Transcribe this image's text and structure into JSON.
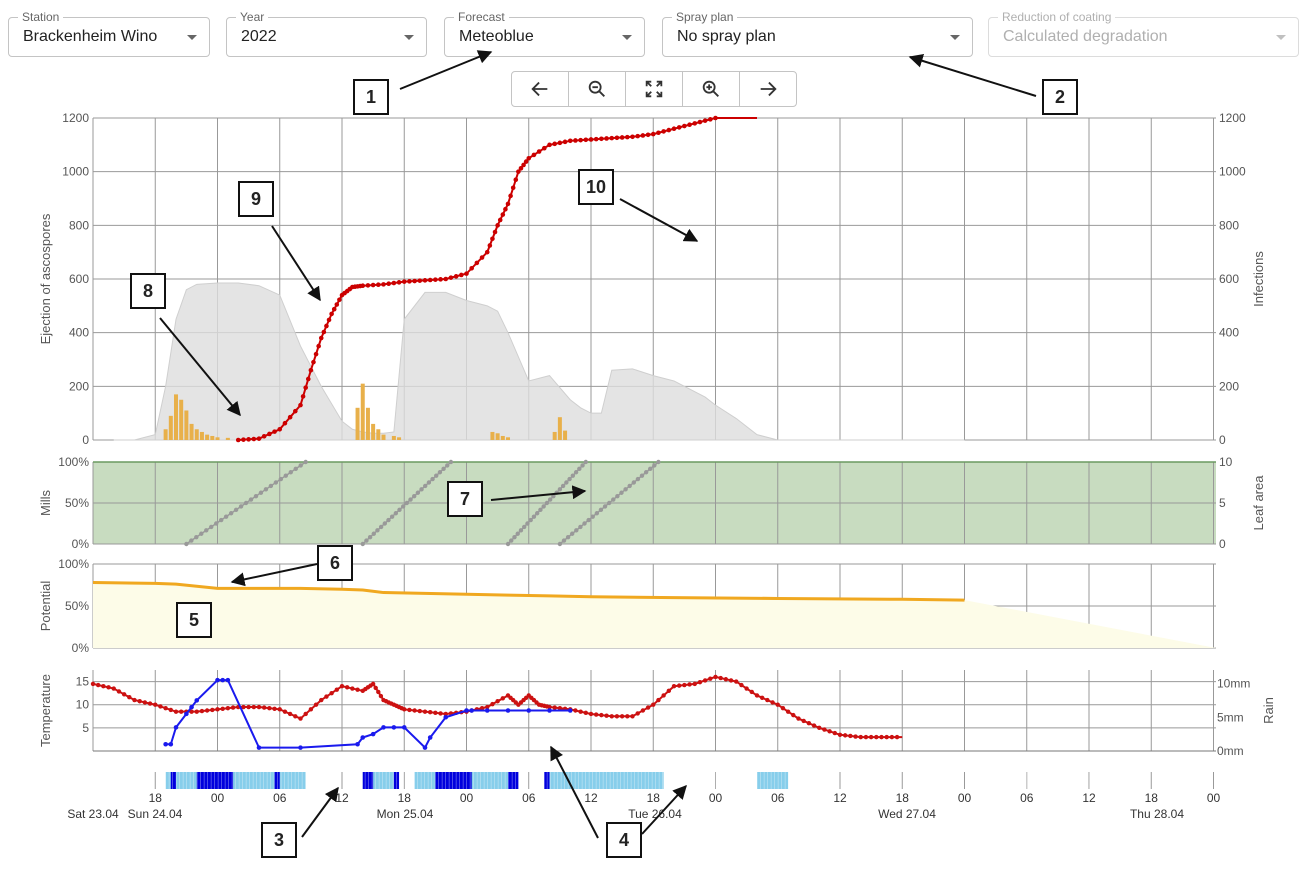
{
  "selectors": {
    "station": {
      "label": "Station",
      "value": "Brackenheim Wino"
    },
    "year": {
      "label": "Year",
      "value": "2022"
    },
    "forecast": {
      "label": "Forecast",
      "value": "Meteoblue"
    },
    "spray_plan": {
      "label": "Spray plan",
      "value": "No spray plan"
    },
    "coating": {
      "label": "Reduction of coating",
      "value": "Calculated degradation",
      "disabled": true
    }
  },
  "toolbar": {
    "icons": [
      "arrow-left-icon",
      "zoom-out-icon",
      "fullscreen-icon",
      "zoom-in-icon",
      "arrow-right-icon"
    ]
  },
  "annotations": [
    "1",
    "2",
    "3",
    "4",
    "5",
    "6",
    "7",
    "8",
    "9",
    "10"
  ],
  "colors": {
    "infections": "#cc0000",
    "spores": "#e8b04a",
    "potential": "#dddddd",
    "mills": "#c8dcc0",
    "leaf_area": "#999999",
    "coating": "#f0a820",
    "coating_fill": "#fdfce8",
    "temperature": "#cc1111",
    "rain": "#1a1aee",
    "wetness_light": "#87ceeb",
    "wetness_dark": "#0000dd"
  },
  "chart_data": [
    {
      "type": "area",
      "name": "ascospores",
      "ylabel": "Ejection of ascospores",
      "y2label": "Infections",
      "ylim": [
        0,
        1200
      ],
      "y2lim": [
        0,
        1200
      ],
      "yticks": [
        "0",
        "200",
        "400",
        "600",
        "800",
        "1000",
        "1200"
      ],
      "y2ticks": [
        "0",
        "200",
        "400",
        "600",
        "800",
        "1000",
        "1200"
      ],
      "x": [
        -4,
        -2,
        0,
        1,
        2,
        3,
        4,
        6,
        8,
        10,
        12,
        14,
        16,
        18,
        19,
        20,
        21,
        22,
        23,
        24,
        26,
        28,
        30,
        32,
        33,
        34,
        36,
        38,
        40,
        41,
        42,
        43,
        44,
        46,
        48,
        50,
        52,
        53,
        54,
        56,
        58,
        60,
        62,
        64,
        66,
        68,
        70,
        72,
        74,
        76,
        78
      ],
      "potential": [
        0,
        0,
        20,
        200,
        450,
        560,
        580,
        585,
        585,
        575,
        540,
        350,
        200,
        70,
        40,
        30,
        25,
        25,
        30,
        450,
        550,
        550,
        520,
        500,
        480,
        400,
        220,
        240,
        150,
        120,
        100,
        100,
        260,
        265,
        240,
        220,
        180,
        160,
        130,
        80,
        20,
        0,
        0,
        0,
        0,
        0,
        0,
        0,
        0,
        0,
        0
      ],
      "spores_x": [
        1,
        1.5,
        2,
        2.5,
        3,
        3.5,
        4,
        4.5,
        5,
        5.5,
        6,
        7,
        8,
        19.5,
        20,
        20.5,
        21,
        21.5,
        22,
        23,
        23.5,
        32.5,
        33,
        33.5,
        34,
        38.5,
        39,
        39.5
      ],
      "spores": [
        40,
        90,
        170,
        150,
        110,
        60,
        40,
        30,
        20,
        15,
        10,
        8,
        5,
        120,
        210,
        120,
        60,
        40,
        20,
        15,
        10,
        30,
        25,
        15,
        10,
        30,
        85,
        35
      ],
      "infections_x": [
        8,
        10,
        12,
        14,
        15,
        16,
        17,
        18,
        19,
        20,
        22,
        24,
        26,
        28,
        30,
        32,
        33,
        34,
        35,
        36,
        38,
        40,
        42,
        44,
        46,
        48,
        50,
        52,
        54,
        56,
        58
      ],
      "infections": [
        0,
        5,
        40,
        130,
        260,
        380,
        470,
        540,
        570,
        575,
        580,
        590,
        595,
        600,
        620,
        700,
        800,
        880,
        1000,
        1050,
        1100,
        1115,
        1120,
        1125,
        1130,
        1140,
        1160,
        1180,
        1200,
        1220,
        1240
      ]
    },
    {
      "type": "line",
      "name": "mills_leaf",
      "ylabel": "Mills",
      "y2label": "Leaf area",
      "yticks": [
        "0%",
        "50%",
        "100%"
      ],
      "y2ticks": [
        "0",
        "5",
        "10"
      ],
      "mills_percent": 100,
      "leaf_segments": [
        {
          "x": [
            3,
            14.5
          ],
          "y": [
            0,
            10
          ]
        },
        {
          "x": [
            20,
            28.5
          ],
          "y": [
            0,
            10
          ]
        },
        {
          "x": [
            34,
            41.5
          ],
          "y": [
            0,
            10
          ]
        },
        {
          "x": [
            39,
            48.5
          ],
          "y": [
            0,
            10
          ]
        }
      ]
    },
    {
      "type": "area",
      "name": "coating",
      "ylabel": "Potential",
      "yticks": [
        "0%",
        "50%",
        "100%"
      ],
      "x": [
        -6,
        0,
        2,
        6,
        10,
        14,
        18,
        20,
        22,
        26,
        30,
        34,
        38,
        42,
        50,
        60,
        72,
        78
      ],
      "potential_percent": [
        78,
        77,
        76,
        71,
        71,
        71,
        70,
        69,
        66,
        65,
        64,
        63,
        62,
        61,
        60,
        59,
        58,
        57
      ]
    },
    {
      "type": "line",
      "name": "weather",
      "ylabel": "Temperature",
      "y2label": "Rain",
      "yticks": [
        "5",
        "10",
        "15"
      ],
      "y2ticks": [
        "0mm",
        "5mm",
        "10mm"
      ],
      "temp_x": [
        -6,
        -4,
        -2,
        0,
        2,
        4,
        6,
        8,
        10,
        12,
        14,
        16,
        18,
        20,
        21,
        22,
        23,
        24,
        26,
        28,
        30,
        32,
        34,
        35,
        36,
        37,
        38,
        40,
        42,
        44,
        46,
        48,
        50,
        52,
        54,
        56,
        58,
        60,
        62,
        64,
        66,
        68,
        70,
        72
      ],
      "temperature": [
        14.5,
        13.5,
        11,
        10,
        8.5,
        8.5,
        9,
        9.5,
        9.5,
        9,
        7,
        11,
        14,
        13,
        14.5,
        11,
        10,
        9,
        8.5,
        8,
        8.5,
        9.5,
        12,
        10,
        12,
        10,
        9.5,
        9,
        8,
        7.5,
        7.5,
        10,
        14,
        14.5,
        16,
        15,
        12,
        10,
        7,
        5,
        3.5,
        3,
        3,
        3
      ],
      "rain_x": [
        1,
        1.5,
        2,
        3,
        3.5,
        4,
        6,
        6.5,
        7,
        10,
        14,
        19.5,
        20,
        21,
        22,
        23,
        24,
        26,
        26.5,
        28,
        30,
        30.5,
        32,
        34,
        36,
        38,
        40
      ],
      "rain_mm": [
        1,
        1,
        3.5,
        5.5,
        6.5,
        7.5,
        10.5,
        10.5,
        10.5,
        0.5,
        0.5,
        1,
        2,
        2.5,
        3.5,
        3.5,
        3.5,
        0.5,
        2,
        5,
        6,
        6,
        6,
        6,
        6,
        6,
        6
      ],
      "wetness": {
        "light": [
          [
            1,
            14.5
          ],
          [
            20,
            23
          ],
          [
            25,
            34
          ],
          [
            38,
            49
          ],
          [
            58,
            61
          ]
        ],
        "dark": [
          [
            1.5,
            2
          ],
          [
            4,
            7.5
          ],
          [
            11.5,
            12
          ],
          [
            20,
            21
          ],
          [
            23,
            23.5
          ],
          [
            27,
            30.5
          ],
          [
            34,
            35
          ],
          [
            37.5,
            38
          ]
        ]
      }
    }
  ],
  "xaxis": {
    "tick_hours": [
      "18",
      "00",
      "06",
      "12",
      "18",
      "00",
      "06",
      "12",
      "18",
      "00",
      "06",
      "12",
      "18",
      "00",
      "06",
      "12",
      "18",
      "00"
    ],
    "date_labels": [
      "Sat 23.04",
      "Sun 24.04",
      "Mon 25.04",
      "Tue 26.04",
      "Wed 27.04",
      "Thu 28.04"
    ]
  }
}
